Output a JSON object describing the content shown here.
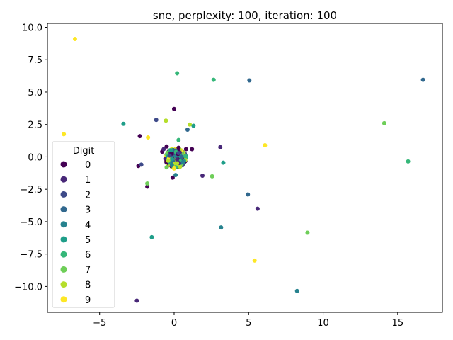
{
  "chart_data": {
    "type": "scatter",
    "title": "sne, perplexity: 100, iteration: 100",
    "xlabel": "",
    "ylabel": "",
    "xlim": [
      -8.5,
      18
    ],
    "ylim": [
      -12,
      10.3
    ],
    "x_ticks": [
      -5,
      0,
      5,
      10,
      15
    ],
    "x_tick_labels": [
      "−5",
      "0",
      "5",
      "10",
      "15"
    ],
    "y_ticks": [
      -10,
      -7.5,
      -5,
      -2.5,
      0,
      2.5,
      5,
      7.5,
      10
    ],
    "y_tick_labels": [
      "−10.0",
      "−7.5",
      "−5.0",
      "−2.5",
      "0.0",
      "2.5",
      "5.0",
      "7.5",
      "10.0"
    ],
    "grid": false,
    "legend": {
      "title": "Digit",
      "placement": "center-left",
      "entries": [
        "0",
        "1",
        "2",
        "3",
        "4",
        "5",
        "6",
        "7",
        "8",
        "9"
      ]
    },
    "colors": [
      "#440154",
      "#482878",
      "#3e4a89",
      "#31688e",
      "#26828e",
      "#1f9e89",
      "#35b779",
      "#6ece58",
      "#b5de2b",
      "#fde725"
    ],
    "series": [
      {
        "name": "0",
        "color": "#440154",
        "points": [
          [
            0.0,
            3.7
          ],
          [
            -2.4,
            -0.7
          ],
          [
            -1.8,
            -2.3
          ],
          [
            -2.3,
            1.6
          ],
          [
            -0.1,
            -1.6
          ],
          [
            0.8,
            0.6
          ],
          [
            1.2,
            0.6
          ],
          [
            0.3,
            0.7
          ],
          [
            -0.8,
            0.4
          ],
          [
            -0.5,
            0.8
          ]
        ]
      },
      {
        "name": "1",
        "color": "#482878",
        "points": [
          [
            3.1,
            0.75
          ],
          [
            1.9,
            -1.45
          ],
          [
            5.6,
            -4.0
          ],
          [
            -2.5,
            -11.1
          ],
          [
            -0.7,
            0.6
          ],
          [
            0.2,
            -0.2
          ]
        ]
      },
      {
        "name": "2",
        "color": "#3e4a89",
        "points": [
          [
            -2.2,
            -0.6
          ],
          [
            -1.2,
            2.85
          ],
          [
            0.3,
            0.3
          ],
          [
            -0.3,
            0.1
          ]
        ]
      },
      {
        "name": "3",
        "color": "#31688e",
        "points": [
          [
            5.05,
            5.9
          ],
          [
            16.7,
            5.95
          ],
          [
            4.95,
            -2.9
          ],
          [
            0.9,
            2.1
          ],
          [
            0.5,
            0.0
          ]
        ]
      },
      {
        "name": "4",
        "color": "#26828e",
        "points": [
          [
            3.15,
            -5.45
          ],
          [
            8.25,
            -10.35
          ],
          [
            0.1,
            -1.4
          ],
          [
            0.6,
            -0.4
          ]
        ]
      },
      {
        "name": "5",
        "color": "#1f9e89",
        "points": [
          [
            -3.4,
            2.55
          ],
          [
            -1.5,
            -6.2
          ],
          [
            1.3,
            2.4
          ],
          [
            3.3,
            -0.45
          ],
          [
            -0.2,
            0.5
          ]
        ]
      },
      {
        "name": "6",
        "color": "#35b779",
        "points": [
          [
            0.2,
            6.45
          ],
          [
            2.65,
            5.95
          ],
          [
            15.7,
            -0.35
          ],
          [
            0.3,
            1.3
          ],
          [
            0.1,
            -0.8
          ]
        ]
      },
      {
        "name": "7",
        "color": "#6ece58",
        "points": [
          [
            14.1,
            2.6
          ],
          [
            8.95,
            -5.85
          ],
          [
            2.55,
            -1.5
          ],
          [
            -1.8,
            -2.05
          ],
          [
            -0.5,
            -0.8
          ]
        ]
      },
      {
        "name": "8",
        "color": "#b5de2b",
        "points": [
          [
            -0.55,
            2.8
          ],
          [
            1.05,
            2.5
          ],
          [
            -0.4,
            -0.3
          ],
          [
            0.2,
            -0.5
          ]
        ]
      },
      {
        "name": "9",
        "color": "#fde725",
        "points": [
          [
            -6.65,
            9.1
          ],
          [
            -7.4,
            1.75
          ],
          [
            -1.75,
            1.5
          ],
          [
            6.1,
            0.9
          ],
          [
            5.4,
            -8.0
          ],
          [
            0.0,
            -0.9
          ]
        ]
      }
    ],
    "cluster": {
      "center": [
        0.1,
        -0.1
      ],
      "spread": [
        0.7,
        0.75
      ],
      "count": 320
    }
  }
}
